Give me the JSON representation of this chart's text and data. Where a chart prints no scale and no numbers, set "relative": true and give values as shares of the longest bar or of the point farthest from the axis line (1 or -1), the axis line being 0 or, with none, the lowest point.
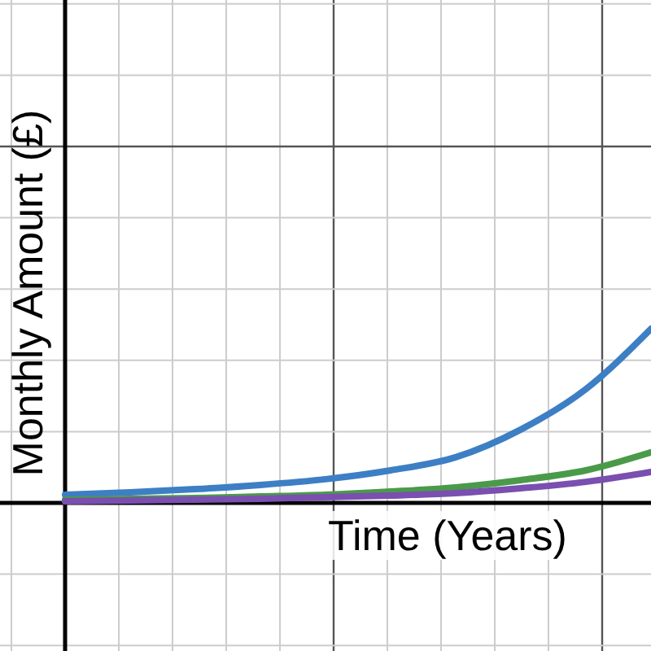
{
  "chart_data": {
    "type": "line",
    "xlabel": "Time (Years)",
    "ylabel": "Monthly Amount (£)",
    "relative": true,
    "grid": true,
    "legend": false,
    "marker": "none",
    "line_style": "solid",
    "categories": [
      null,
      null,
      null,
      null,
      null,
      null,
      null,
      null,
      null,
      null
    ],
    "series": [
      {
        "color": "#3d7fc4",
        "values": [
          0.047,
          0.061,
          0.079,
          0.103,
          0.136,
          0.187,
          0.262,
          0.421,
          0.654,
          1
        ]
      },
      {
        "color": "#4a9a4a",
        "values": [
          0.019,
          0.023,
          0.028,
          0.037,
          0.047,
          0.065,
          0.089,
          0.131,
          0.187,
          0.29
        ]
      },
      {
        "color": "#7a4fb0",
        "values": [
          0.009,
          0.014,
          0.019,
          0.023,
          0.033,
          0.042,
          0.056,
          0.084,
          0.121,
          0.178
        ]
      }
    ]
  }
}
